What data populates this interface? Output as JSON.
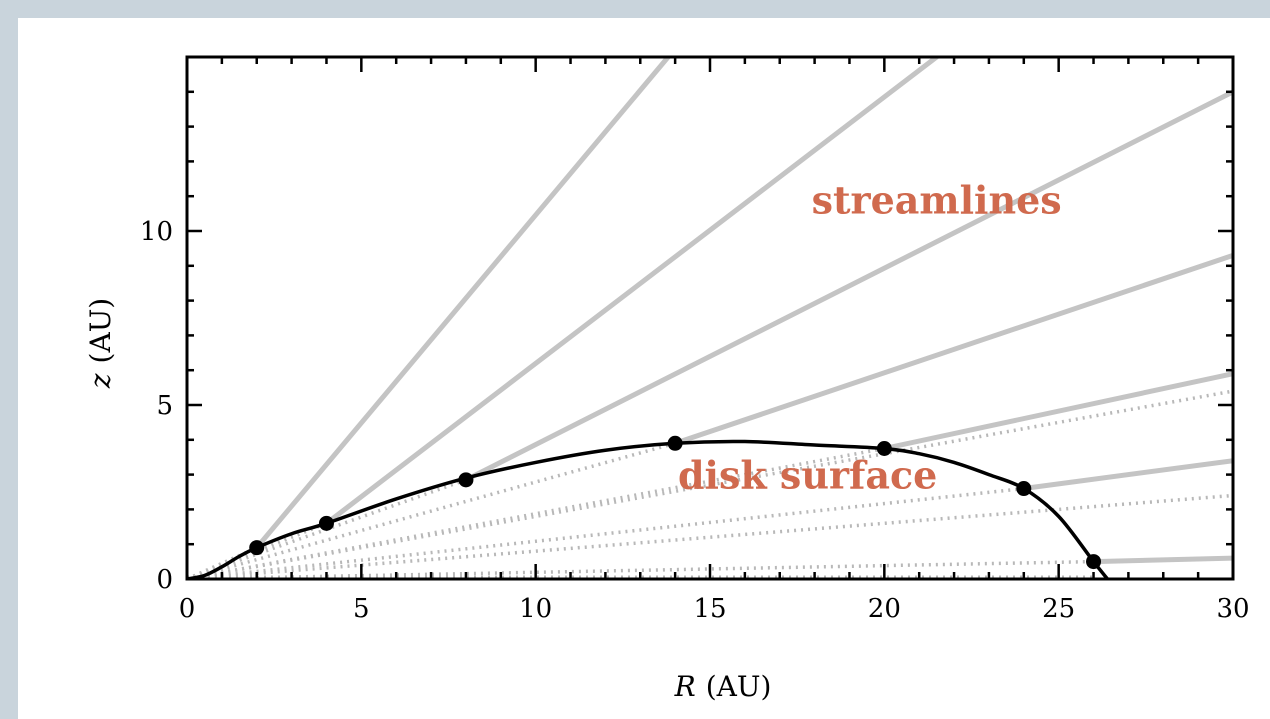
{
  "chart_data": {
    "type": "line",
    "xlabel": {
      "var": "R",
      "unit": "(AU)"
    },
    "ylabel": {
      "var": "z",
      "unit": "(AU)"
    },
    "xlim": [
      0,
      30
    ],
    "ylim": [
      0,
      15
    ],
    "xticks": [
      0,
      5,
      10,
      15,
      20,
      25,
      30
    ],
    "yticks": [
      0,
      5,
      10
    ],
    "grid": false,
    "colors": {
      "surface": "#000000",
      "streamline": "#c4c4c4",
      "dotted": "#b8b8b8",
      "annotation": "#d06a4e"
    },
    "disk_surface": {
      "x": [
        0,
        0.5,
        1,
        1.5,
        2,
        3,
        4,
        6,
        8,
        10,
        12,
        14,
        16,
        18,
        20,
        21,
        22,
        23,
        24,
        25,
        26,
        26.4
      ],
      "y": [
        0,
        0.1,
        0.35,
        0.65,
        0.9,
        1.3,
        1.6,
        2.3,
        2.9,
        3.35,
        3.7,
        3.9,
        3.95,
        3.85,
        3.75,
        3.6,
        3.35,
        3.0,
        2.6,
        1.8,
        0.5,
        0
      ]
    },
    "markers": {
      "x": [
        2,
        4,
        8,
        14,
        20,
        24,
        26
      ],
      "y": [
        0.9,
        1.6,
        2.85,
        3.9,
        3.75,
        2.6,
        0.5
      ]
    },
    "streamlines": [
      {
        "start": [
          2,
          0.9
        ],
        "end": [
          13.8,
          15
        ]
      },
      {
        "start": [
          4,
          1.6
        ],
        "end": [
          21.5,
          15
        ]
      },
      {
        "start": [
          8,
          2.85
        ],
        "end": [
          30,
          14
        ]
      },
      {
        "start": [
          14,
          3.9
        ],
        "end": [
          30,
          9.3
        ]
      },
      {
        "start": [
          20,
          3.75
        ],
        "end": [
          30,
          5.9
        ]
      },
      {
        "start": [
          24,
          2.6
        ],
        "end": [
          30,
          3.4
        ]
      },
      {
        "start": [
          26,
          0.5
        ],
        "end": [
          30,
          0.6
        ]
      }
    ],
    "annotations": [
      {
        "text": "streamlines",
        "x": 21.5,
        "y": 10.5
      },
      {
        "text": "disk surface",
        "x": 17.8,
        "y": 2.6
      }
    ]
  }
}
